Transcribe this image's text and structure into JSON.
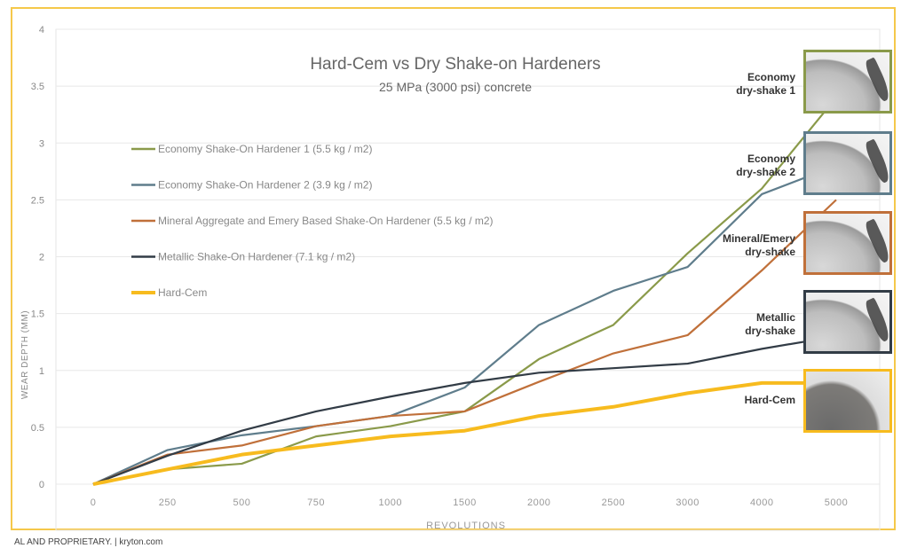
{
  "chart_data": {
    "type": "line",
    "title": "Hard-Cem vs Dry Shake-on Hardeners",
    "subtitle": "25 MPa (3000 psi) concrete",
    "xlabel": "REVOLUTIONS",
    "ylabel": "WEAR DEPTH (MM)",
    "categories": [
      "0",
      "250",
      "500",
      "750",
      "1000",
      "1500",
      "2000",
      "2500",
      "3000",
      "4000",
      "5000"
    ],
    "ylim": [
      0,
      4
    ],
    "yticks": [
      "0",
      "0.5",
      "1",
      "1.5",
      "2",
      "2.5",
      "3",
      "3.5",
      "4"
    ],
    "grid": true,
    "legend": "left",
    "series": [
      {
        "name": "Economy Shake-On Hardener 1 (5.5 kg / m2)",
        "color": "#8a9a4a",
        "values": [
          0,
          0.13,
          0.18,
          0.42,
          0.51,
          0.64,
          1.1,
          1.4,
          2.03,
          2.6,
          3.4
        ]
      },
      {
        "name": "Economy Shake-On Hardener 2 (3.9 kg / m2)",
        "color": "#5f7d8c",
        "values": [
          0,
          0.3,
          0.43,
          0.51,
          0.6,
          0.85,
          1.4,
          1.7,
          1.91,
          2.55,
          2.8
        ]
      },
      {
        "name": "Mineral Aggregate and Emery Based Shake-On Hardener (5.5 kg / m2)",
        "color": "#c0703a",
        "values": [
          0,
          0.26,
          0.34,
          0.51,
          0.6,
          0.64,
          0.9,
          1.15,
          1.31,
          1.88,
          2.5
        ]
      },
      {
        "name": "Metallic Shake-On Hardener (7.1 kg / m2)",
        "color": "#323c46",
        "values": [
          0,
          0.25,
          0.47,
          0.64,
          0.77,
          0.89,
          0.98,
          1.02,
          1.06,
          1.19,
          1.3
        ]
      },
      {
        "name": "Hard-Cem",
        "color": "#f7bb1e",
        "values": [
          0,
          0.13,
          0.26,
          0.34,
          0.42,
          0.47,
          0.6,
          0.68,
          0.8,
          0.89,
          0.89
        ]
      }
    ]
  },
  "photos": [
    {
      "label_line1": "Economy",
      "label_line2": "dry-shake 1",
      "border": "#8a9a4a"
    },
    {
      "label_line1": "Economy",
      "label_line2": "dry-shake 2",
      "border": "#5f7d8c"
    },
    {
      "label_line1": "Mineral/Emery",
      "label_line2": "dry-shake",
      "border": "#c0703a"
    },
    {
      "label_line1": "Metallic",
      "label_line2": "dry-shake",
      "border": "#323c46"
    },
    {
      "label_line1": "Hard-Cem",
      "label_line2": "",
      "border": "#f7bb1e"
    }
  ],
  "footer": "AL AND PROPRIETARY. | kryton.com"
}
